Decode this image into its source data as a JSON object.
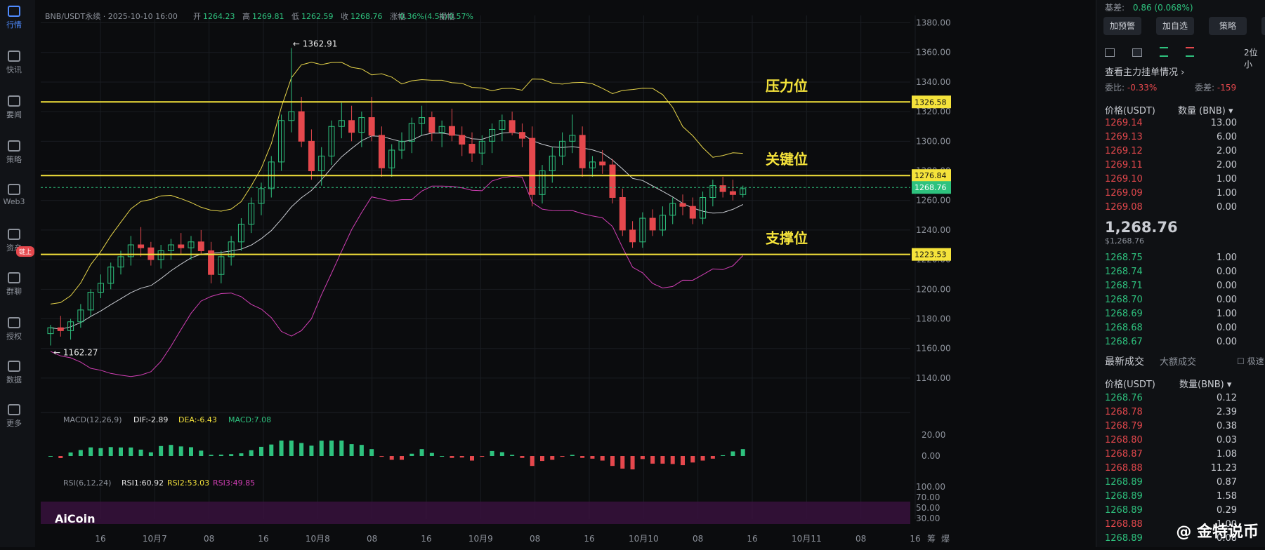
{
  "sidebar": {
    "items": [
      {
        "label": "行情",
        "icon": "bar-chart-icon",
        "active": true
      },
      {
        "label": "快讯",
        "icon": "newsflash-icon"
      },
      {
        "label": "要闻",
        "icon": "news-icon"
      },
      {
        "label": "策略",
        "icon": "strategy-icon"
      },
      {
        "label": "Web3",
        "icon": "web3-icon"
      },
      {
        "label": "资产",
        "icon": "wallet-icon"
      },
      {
        "label": "群聊",
        "icon": "chat-icon"
      },
      {
        "label": "授权",
        "icon": "authorize-icon"
      },
      {
        "label": "数据",
        "icon": "data-icon"
      },
      {
        "label": "更多",
        "icon": "more-icon"
      }
    ],
    "badge": "链上"
  },
  "ohlc": {
    "symbol": "BNB/USDT永续 · 2025-10-10 16:00",
    "open_label": "开",
    "open": "1264.23",
    "high_label": "高",
    "high": "1269.81",
    "low_label": "低",
    "low": "1262.59",
    "close_label": "收",
    "close": "1268.76",
    "chg_label": "涨幅",
    "chg": "0.36%(4.54)",
    "amp_label": "振幅",
    "amp": "0.57%"
  },
  "chart_data": {
    "type": "candlestick",
    "y_ticks": [
      "1380.00",
      "1360.00",
      "1340.00",
      "1320.00",
      "1300.00",
      "1280.00",
      "1260.00",
      "1240.00",
      "1220.00",
      "1200.00",
      "1180.00",
      "1160.00",
      "1140.00"
    ],
    "x_ticks": [
      "16",
      "10月7",
      "08",
      "16",
      "10月8",
      "08",
      "16",
      "10月9",
      "08",
      "16",
      "10月10",
      "08",
      "16",
      "10月11",
      "08",
      "16"
    ],
    "ylim": [
      1130,
      1385
    ],
    "high_marker": "1362.91",
    "low_marker": "1162.27",
    "levels": [
      {
        "name": "压力位",
        "value": 1326.58,
        "tag": "1326.58"
      },
      {
        "name": "关键位",
        "value": 1276.84,
        "tag": "1276.84"
      },
      {
        "name": "支撑位",
        "value": 1223.53,
        "tag": "1223.53"
      }
    ],
    "last_price_tag": "1268.76",
    "candles": [
      [
        1170,
        1176,
        1162,
        1174
      ],
      [
        1174,
        1182,
        1168,
        1172
      ],
      [
        1172,
        1180,
        1166,
        1178
      ],
      [
        1178,
        1190,
        1174,
        1186
      ],
      [
        1186,
        1200,
        1182,
        1198
      ],
      [
        1198,
        1210,
        1194,
        1204
      ],
      [
        1204,
        1218,
        1200,
        1215
      ],
      [
        1215,
        1226,
        1210,
        1222
      ],
      [
        1222,
        1236,
        1216,
        1230
      ],
      [
        1230,
        1242,
        1222,
        1228
      ],
      [
        1228,
        1232,
        1216,
        1220
      ],
      [
        1220,
        1230,
        1214,
        1226
      ],
      [
        1226,
        1234,
        1220,
        1230
      ],
      [
        1230,
        1238,
        1224,
        1228
      ],
      [
        1228,
        1236,
        1220,
        1232
      ],
      [
        1232,
        1240,
        1224,
        1226
      ],
      [
        1226,
        1232,
        1204,
        1210
      ],
      [
        1210,
        1226,
        1204,
        1222
      ],
      [
        1222,
        1236,
        1216,
        1232
      ],
      [
        1232,
        1248,
        1226,
        1244
      ],
      [
        1244,
        1262,
        1238,
        1258
      ],
      [
        1258,
        1272,
        1250,
        1268
      ],
      [
        1268,
        1290,
        1262,
        1286
      ],
      [
        1286,
        1318,
        1280,
        1314
      ],
      [
        1314,
        1363,
        1306,
        1320
      ],
      [
        1320,
        1330,
        1296,
        1300
      ],
      [
        1300,
        1308,
        1274,
        1280
      ],
      [
        1280,
        1296,
        1270,
        1290
      ],
      [
        1290,
        1314,
        1284,
        1310
      ],
      [
        1310,
        1326,
        1302,
        1314
      ],
      [
        1314,
        1324,
        1300,
        1306
      ],
      [
        1306,
        1320,
        1296,
        1316
      ],
      [
        1316,
        1330,
        1300,
        1304
      ],
      [
        1304,
        1310,
        1276,
        1282
      ],
      [
        1282,
        1298,
        1276,
        1294
      ],
      [
        1294,
        1306,
        1288,
        1300
      ],
      [
        1300,
        1316,
        1292,
        1312
      ],
      [
        1312,
        1324,
        1304,
        1316
      ],
      [
        1316,
        1320,
        1300,
        1306
      ],
      [
        1306,
        1314,
        1296,
        1310
      ],
      [
        1310,
        1322,
        1300,
        1304
      ],
      [
        1304,
        1310,
        1290,
        1298
      ],
      [
        1298,
        1306,
        1286,
        1292
      ],
      [
        1292,
        1304,
        1284,
        1300
      ],
      [
        1300,
        1312,
        1292,
        1308
      ],
      [
        1308,
        1318,
        1300,
        1314
      ],
      [
        1314,
        1320,
        1304,
        1306
      ],
      [
        1306,
        1312,
        1296,
        1302
      ],
      [
        1302,
        1310,
        1256,
        1264
      ],
      [
        1264,
        1284,
        1258,
        1280
      ],
      [
        1280,
        1296,
        1272,
        1290
      ],
      [
        1290,
        1306,
        1284,
        1300
      ],
      [
        1300,
        1318,
        1292,
        1304
      ],
      [
        1304,
        1310,
        1276,
        1282
      ],
      [
        1282,
        1290,
        1276,
        1286
      ],
      [
        1286,
        1294,
        1278,
        1284
      ],
      [
        1284,
        1288,
        1258,
        1262
      ],
      [
        1262,
        1268,
        1236,
        1240
      ],
      [
        1240,
        1246,
        1228,
        1232
      ],
      [
        1232,
        1252,
        1228,
        1248
      ],
      [
        1248,
        1254,
        1236,
        1240
      ],
      [
        1240,
        1256,
        1236,
        1250
      ],
      [
        1250,
        1262,
        1244,
        1258
      ],
      [
        1258,
        1264,
        1250,
        1256
      ],
      [
        1256,
        1262,
        1244,
        1248
      ],
      [
        1248,
        1266,
        1244,
        1262
      ],
      [
        1262,
        1274,
        1256,
        1270
      ],
      [
        1270,
        1276,
        1262,
        1266
      ],
      [
        1266,
        1274,
        1260,
        1264
      ],
      [
        1264,
        1270,
        1262,
        1268
      ]
    ],
    "indicators": {
      "macd": {
        "label": "MACD(12,26,9)",
        "dif": "DIF:-2.89",
        "dea": "DEA:-6.43",
        "macd": "MACD:7.08",
        "y_ticks": [
          "20.00",
          "0.00"
        ]
      },
      "rsi": {
        "label": "RSI(6,12,24)",
        "rsi1": "RSI1:60.92",
        "rsi2": "RSI2:53.03",
        "rsi3": "RSI3:49.85",
        "y_ticks": [
          "100.00",
          "70.00",
          "50.00",
          "30.00"
        ]
      }
    },
    "level_labels": [
      "压力位",
      "关键位",
      "支撑位"
    ],
    "logo_text": "AiCoin",
    "bottom_right": [
      "筹",
      "爆"
    ]
  },
  "panel": {
    "basis_label": "基差:",
    "basis_value": "0.86 (0.068%)",
    "buttons": [
      "加预警",
      "加自选",
      "策略"
    ],
    "depth_label": "2位小",
    "view_depth": "查看主力挂单情况",
    "wei_bi_label": "委比:",
    "wei_bi": "-0.33%",
    "wei_cha_label": "委差:",
    "wei_cha": "-159",
    "col_price": "价格(USDT)",
    "col_qty": "数量 (BNB)",
    "asks": [
      [
        "1269.14",
        "13.00"
      ],
      [
        "1269.13",
        "6.00"
      ],
      [
        "1269.12",
        "2.00"
      ],
      [
        "1269.11",
        "2.00"
      ],
      [
        "1269.10",
        "1.00"
      ],
      [
        "1269.09",
        "1.00"
      ],
      [
        "1269.08",
        "0.00"
      ]
    ],
    "last": "1,268.76",
    "last_usd": "$1,268.76",
    "bids": [
      [
        "1268.75",
        "1.00"
      ],
      [
        "1268.74",
        "0.00"
      ],
      [
        "1268.71",
        "0.00"
      ],
      [
        "1268.70",
        "0.00"
      ],
      [
        "1268.69",
        "1.00"
      ],
      [
        "1268.68",
        "0.00"
      ],
      [
        "1268.67",
        "0.00"
      ]
    ],
    "tab_latest": "最新成交",
    "tab_big": "大额成交",
    "fast_label": "极速",
    "trades_col_price": "价格(USDT)",
    "trades_col_qty": "数量(BNB)",
    "trades": [
      [
        "1268.76",
        "0.12",
        "g"
      ],
      [
        "1268.78",
        "2.39",
        "r"
      ],
      [
        "1268.79",
        "0.38",
        "r"
      ],
      [
        "1268.80",
        "0.03",
        "r"
      ],
      [
        "1268.87",
        "1.08",
        "r"
      ],
      [
        "1268.88",
        "11.23",
        "r"
      ],
      [
        "1268.89",
        "0.87",
        "g"
      ],
      [
        "1268.89",
        "1.58",
        "g"
      ],
      [
        "1268.89",
        "0.29",
        "g"
      ],
      [
        "1268.88",
        "1.00",
        "r"
      ],
      [
        "1268.89",
        "0.08",
        "g"
      ]
    ],
    "watermark": "@ 金特说币"
  }
}
